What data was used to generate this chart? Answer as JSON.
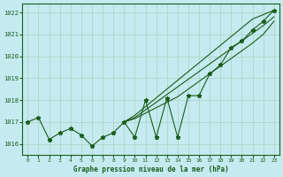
{
  "title": "Graphe pression niveau de la mer (hPa)",
  "bg_color": "#c5eaf0",
  "grid_color": "#aad4c0",
  "line_color": "#1a5c1a",
  "xlim": [
    -0.5,
    23.5
  ],
  "ylim": [
    1015.5,
    1022.4
  ],
  "yticks": [
    1016,
    1017,
    1018,
    1019,
    1020,
    1021,
    1022
  ],
  "xticks": [
    0,
    1,
    2,
    3,
    4,
    5,
    6,
    7,
    8,
    9,
    10,
    11,
    12,
    13,
    14,
    15,
    16,
    17,
    18,
    19,
    20,
    21,
    22,
    23
  ],
  "series_main": [
    1017.0,
    1017.2,
    1016.2,
    1016.5,
    1016.7,
    1016.4,
    1015.9,
    1016.3,
    1016.5,
    1017.0,
    1016.3,
    1018.0,
    1016.3,
    1018.1,
    1016.3,
    1018.2,
    1018.2,
    1019.2,
    1019.6,
    1020.4,
    1020.7,
    1021.2,
    1021.6,
    1022.1
  ],
  "trend1_start": 9,
  "trend1": [
    1017.0,
    1017.15,
    1017.4,
    1017.65,
    1017.9,
    1018.15,
    1018.5,
    1018.85,
    1019.2,
    1019.55,
    1019.9,
    1020.25,
    1020.6,
    1021.0,
    1021.6
  ],
  "trend2_start": 9,
  "trend2": [
    1017.0,
    1017.2,
    1017.55,
    1017.9,
    1018.25,
    1018.6,
    1018.95,
    1019.3,
    1019.65,
    1020.0,
    1020.35,
    1020.7,
    1021.05,
    1021.4,
    1021.8
  ],
  "trend3_start": 9,
  "trend3": [
    1017.0,
    1017.3,
    1017.7,
    1018.1,
    1018.5,
    1018.9,
    1019.3,
    1019.7,
    1020.1,
    1020.5,
    1020.9,
    1021.3,
    1021.7,
    1021.9,
    1022.1
  ]
}
